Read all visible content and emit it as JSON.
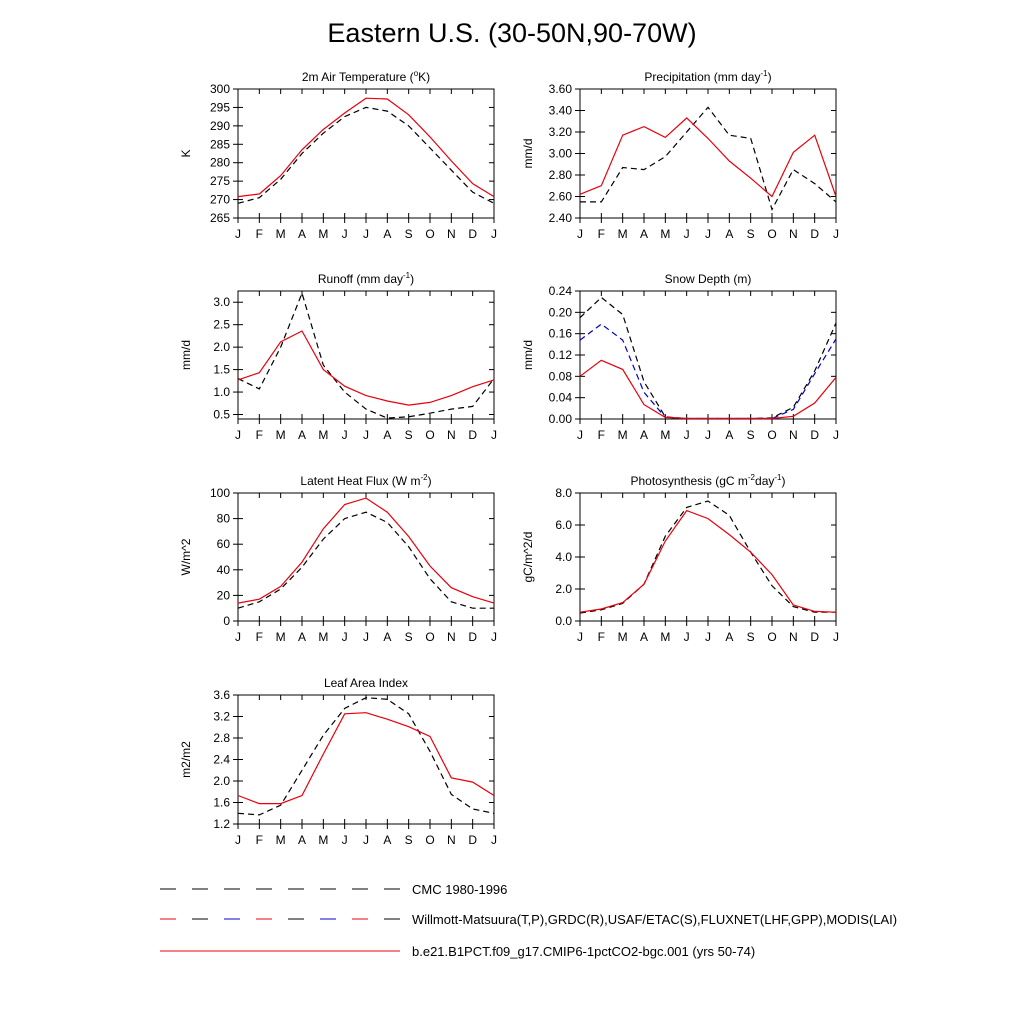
{
  "title": "Eastern U.S. (30-50N,90-70W)",
  "colors": {
    "model": "#e8000b",
    "obs": "#000000",
    "obs_alt": "#0000cc"
  },
  "legend": [
    {
      "label": "CMC 1980-1996",
      "style": "dash-black"
    },
    {
      "label": "Willmott-Matsuura(T,P),GRDC(R),USAF/ETAC(S),FLUXNET(LHF,GPP),MODIS(LAI)",
      "style": "dash-mixed"
    },
    {
      "label": "b.e21.B1PCT.f09_g17.CMIP6-1pctCO2-bgc.001 (yrs 50-74)",
      "style": "solid-red"
    }
  ],
  "chart_data": [
    {
      "type": "line",
      "title": "2m Air Temperature (°K)",
      "title_parts": [
        "2m Air Temperature (",
        "o",
        "K)"
      ],
      "ylabel": "K",
      "x": [
        "J",
        "F",
        "M",
        "A",
        "M",
        "J",
        "J",
        "A",
        "S",
        "O",
        "N",
        "D",
        "J"
      ],
      "ylim": [
        265,
        300
      ],
      "yticks": [
        "265",
        "270",
        "275",
        "280",
        "285",
        "290",
        "295",
        "300"
      ],
      "series": [
        {
          "role": "obs",
          "dash": true,
          "color": "#000000",
          "values": [
            269,
            270.5,
            275.5,
            282.5,
            288,
            292.5,
            295,
            294,
            290,
            284,
            278,
            272,
            269
          ]
        },
        {
          "role": "model",
          "dash": false,
          "color": "#e8000b",
          "values": [
            270.8,
            271.5,
            276.5,
            283.5,
            289,
            293.5,
            297.5,
            297.3,
            293,
            287,
            280.5,
            274.3,
            270.8
          ]
        }
      ]
    },
    {
      "type": "line",
      "title": "Precipitation (mm day-1)",
      "title_parts": [
        "Precipitation (mm day",
        "-1",
        ")"
      ],
      "ylabel": "mm/d",
      "x": [
        "J",
        "F",
        "M",
        "A",
        "M",
        "J",
        "J",
        "A",
        "S",
        "O",
        "N",
        "D",
        "J"
      ],
      "ylim": [
        2.4,
        3.6
      ],
      "yticks": [
        "2.40",
        "2.60",
        "2.80",
        "3.00",
        "3.20",
        "3.40",
        "3.60"
      ],
      "series": [
        {
          "role": "obs",
          "dash": true,
          "color": "#000000",
          "values": [
            2.55,
            2.55,
            2.87,
            2.85,
            2.97,
            3.2,
            3.43,
            3.17,
            3.14,
            2.48,
            2.85,
            2.72,
            2.55
          ]
        },
        {
          "role": "model",
          "dash": false,
          "color": "#e8000b",
          "values": [
            2.62,
            2.7,
            3.17,
            3.25,
            3.15,
            3.33,
            3.14,
            2.93,
            2.77,
            2.6,
            3.01,
            3.17,
            2.6
          ]
        }
      ]
    },
    {
      "type": "line",
      "title": "Runoff (mm day-1)",
      "title_parts": [
        "Runoff (mm day",
        "-1",
        ")"
      ],
      "ylabel": "mm/d",
      "x": [
        "J",
        "F",
        "M",
        "A",
        "M",
        "J",
        "J",
        "A",
        "S",
        "O",
        "N",
        "D",
        "J"
      ],
      "ylim": [
        0.4,
        3.25
      ],
      "yticks": [
        "0.5",
        "1.0",
        "1.5",
        "2.0",
        "2.5",
        "3.0"
      ],
      "ytick_values": [
        0.5,
        1.0,
        1.5,
        2.0,
        2.5,
        3.0
      ],
      "series": [
        {
          "role": "obs",
          "dash": true,
          "color": "#000000",
          "values": [
            1.3,
            1.07,
            2.0,
            3.2,
            1.6,
            1.0,
            0.62,
            0.42,
            0.45,
            0.53,
            0.62,
            0.68,
            1.3
          ]
        },
        {
          "role": "model",
          "dash": false,
          "color": "#e8000b",
          "values": [
            1.27,
            1.43,
            2.12,
            2.36,
            1.5,
            1.13,
            0.92,
            0.8,
            0.71,
            0.77,
            0.92,
            1.12,
            1.27
          ]
        }
      ]
    },
    {
      "type": "line",
      "title": "Snow Depth (m)",
      "title_parts": [
        "Snow Depth (m)"
      ],
      "ylabel": "mm/d",
      "x": [
        "J",
        "F",
        "M",
        "A",
        "M",
        "J",
        "J",
        "A",
        "S",
        "O",
        "N",
        "D",
        "J"
      ],
      "ylim": [
        0.0,
        0.24
      ],
      "yticks": [
        "0.00",
        "0.04",
        "0.08",
        "0.12",
        "0.16",
        "0.20",
        "0.24"
      ],
      "series": [
        {
          "role": "obs",
          "dash": true,
          "color": "#000000",
          "values": [
            0.19,
            0.228,
            0.196,
            0.07,
            0.004,
            0.001,
            0.001,
            0.001,
            0.001,
            0.002,
            0.022,
            0.09,
            0.18
          ]
        },
        {
          "role": "obs_alt",
          "dash": true,
          "color": "#0000cc",
          "values": [
            0.148,
            0.178,
            0.148,
            0.05,
            0.003,
            0.001,
            0.001,
            0.001,
            0.001,
            0.001,
            0.018,
            0.085,
            0.15
          ]
        },
        {
          "role": "model",
          "dash": false,
          "color": "#e8000b",
          "values": [
            0.08,
            0.11,
            0.093,
            0.027,
            0.003,
            0.001,
            0.001,
            0.001,
            0.001,
            0.001,
            0.005,
            0.03,
            0.078
          ]
        }
      ]
    },
    {
      "type": "line",
      "title": "Latent Heat Flux (W m-2)",
      "title_parts": [
        "Latent Heat Flux (W m",
        "-2",
        ")"
      ],
      "ylabel": "W/m^2",
      "x": [
        "J",
        "F",
        "M",
        "A",
        "M",
        "J",
        "J",
        "A",
        "S",
        "O",
        "N",
        "D",
        "J"
      ],
      "ylim": [
        0,
        100
      ],
      "yticks": [
        "0",
        "20",
        "40",
        "60",
        "80",
        "100"
      ],
      "series": [
        {
          "role": "obs",
          "dash": true,
          "color": "#000000",
          "values": [
            10,
            15,
            25,
            42,
            64,
            80,
            85,
            77,
            58,
            33,
            15,
            10,
            10
          ]
        },
        {
          "role": "model",
          "dash": false,
          "color": "#e8000b",
          "values": [
            14,
            17,
            27,
            46,
            72,
            91,
            96,
            85,
            66,
            43,
            26,
            19,
            14
          ]
        }
      ]
    },
    {
      "type": "line",
      "title": "Photosynthesis (gC m-2day-1)",
      "title_parts": [
        "Photosynthesis (gC m",
        "-2",
        "day",
        "-1",
        ")"
      ],
      "ylabel": "gC/m^2/d",
      "x": [
        "J",
        "F",
        "M",
        "A",
        "M",
        "J",
        "J",
        "A",
        "S",
        "O",
        "N",
        "D",
        "J"
      ],
      "ylim": [
        0,
        8.0
      ],
      "yticks": [
        "0.0",
        "2.0",
        "4.0",
        "6.0",
        "8.0"
      ],
      "series": [
        {
          "role": "obs",
          "dash": true,
          "color": "#000000",
          "values": [
            0.5,
            0.7,
            1.1,
            2.3,
            5.3,
            7.1,
            7.5,
            6.6,
            4.3,
            2.2,
            0.9,
            0.55,
            0.55
          ]
        },
        {
          "role": "model",
          "dash": false,
          "color": "#e8000b",
          "values": [
            0.55,
            0.75,
            1.15,
            2.3,
            5.0,
            6.9,
            6.4,
            5.4,
            4.3,
            2.9,
            1.0,
            0.6,
            0.55
          ]
        }
      ]
    },
    {
      "type": "line",
      "title": "Leaf Area Index",
      "title_parts": [
        "Leaf Area Index"
      ],
      "ylabel": "m2/m2",
      "x": [
        "J",
        "F",
        "M",
        "A",
        "M",
        "J",
        "J",
        "A",
        "S",
        "O",
        "N",
        "D",
        "J"
      ],
      "ylim": [
        1.2,
        3.6
      ],
      "yticks": [
        "1.2",
        "1.6",
        "2.0",
        "2.4",
        "2.8",
        "3.2",
        "3.6"
      ],
      "series": [
        {
          "role": "obs",
          "dash": true,
          "color": "#000000",
          "values": [
            1.4,
            1.37,
            1.55,
            2.2,
            2.85,
            3.35,
            3.55,
            3.52,
            3.25,
            2.55,
            1.75,
            1.48,
            1.4
          ]
        },
        {
          "role": "model",
          "dash": false,
          "color": "#e8000b",
          "values": [
            1.73,
            1.58,
            1.58,
            1.73,
            2.5,
            3.25,
            3.27,
            3.15,
            3.01,
            2.83,
            2.06,
            1.98,
            1.73
          ]
        }
      ]
    }
  ]
}
